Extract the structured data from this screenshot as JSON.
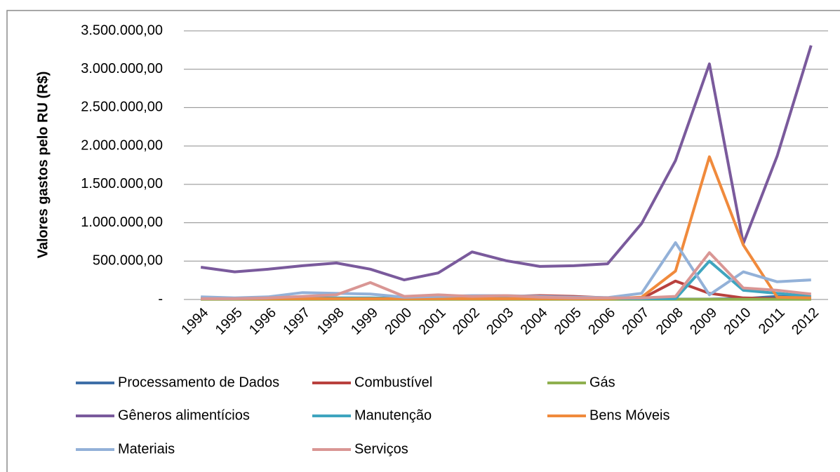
{
  "chart_data": {
    "type": "line",
    "y_label": "Valores gastos pelo RU (R$)",
    "categories": [
      "1994",
      "1995",
      "1996",
      "1997",
      "1998",
      "1999",
      "2000",
      "2001",
      "2002",
      "2003",
      "2004",
      "2005",
      "2006",
      "2007",
      "2008",
      "2009",
      "2010",
      "2011",
      "2012"
    ],
    "ylim": [
      0,
      3500000
    ],
    "yticks": [
      {
        "value": 0,
        "label": "-"
      },
      {
        "value": 500000,
        "label": "500.000,00"
      },
      {
        "value": 1000000,
        "label": "1.000.000,00"
      },
      {
        "value": 1500000,
        "label": "1.500.000,00"
      },
      {
        "value": 2000000,
        "label": "2.000.000,00"
      },
      {
        "value": 2500000,
        "label": "2.500.000,00"
      },
      {
        "value": 3000000,
        "label": "3.000.000,00"
      },
      {
        "value": 3500000,
        "label": "3.500.000,00"
      }
    ],
    "grid": true,
    "legend": "bottom",
    "series": [
      {
        "name": "Processamento de Dados",
        "color": "#3f6fa8",
        "values": [
          5000,
          5000,
          5000,
          5000,
          5000,
          5000,
          5000,
          5000,
          5000,
          5000,
          5000,
          5000,
          5000,
          5000,
          5000,
          5000,
          10000,
          40000,
          30000
        ]
      },
      {
        "name": "Combustível",
        "color": "#b9413e",
        "values": [
          10000,
          10000,
          10000,
          10000,
          10000,
          10000,
          20000,
          50000,
          40000,
          40000,
          50000,
          40000,
          20000,
          10000,
          240000,
          80000,
          20000,
          10000,
          10000
        ]
      },
      {
        "name": "Gás",
        "color": "#8fb04f",
        "values": [
          2000,
          2000,
          2000,
          2000,
          2000,
          2000,
          2000,
          2000,
          2000,
          2000,
          2000,
          2000,
          2000,
          2000,
          2000,
          2000,
          2000,
          2000,
          2000
        ]
      },
      {
        "name": "Gêneros alimentícios",
        "color": "#7a5a9c",
        "values": [
          420000,
          360000,
          395000,
          440000,
          475000,
          395000,
          255000,
          345000,
          620000,
          505000,
          430000,
          440000,
          465000,
          990000,
          1810000,
          3070000,
          730000,
          1870000,
          3310000
        ]
      },
      {
        "name": "Manutenção",
        "color": "#3fa5bf",
        "values": [
          20000,
          15000,
          20000,
          20000,
          20000,
          20000,
          15000,
          20000,
          20000,
          20000,
          20000,
          20000,
          15000,
          10000,
          10000,
          500000,
          120000,
          80000,
          40000
        ]
      },
      {
        "name": "Bens Móveis",
        "color": "#f08a3c",
        "values": [
          10000,
          10000,
          10000,
          10000,
          10000,
          10000,
          10000,
          10000,
          10000,
          10000,
          10000,
          10000,
          10000,
          30000,
          370000,
          1860000,
          710000,
          30000,
          20000
        ]
      },
      {
        "name": "Materiais",
        "color": "#93b1d8",
        "values": [
          35000,
          20000,
          35000,
          90000,
          80000,
          70000,
          30000,
          40000,
          50000,
          50000,
          40000,
          30000,
          25000,
          80000,
          740000,
          60000,
          360000,
          230000,
          255000
        ]
      },
      {
        "name": "Serviços",
        "color": "#d99694",
        "values": [
          10000,
          10000,
          20000,
          40000,
          60000,
          220000,
          40000,
          60000,
          40000,
          50000,
          30000,
          20000,
          20000,
          20000,
          40000,
          610000,
          150000,
          120000,
          70000
        ]
      }
    ]
  }
}
